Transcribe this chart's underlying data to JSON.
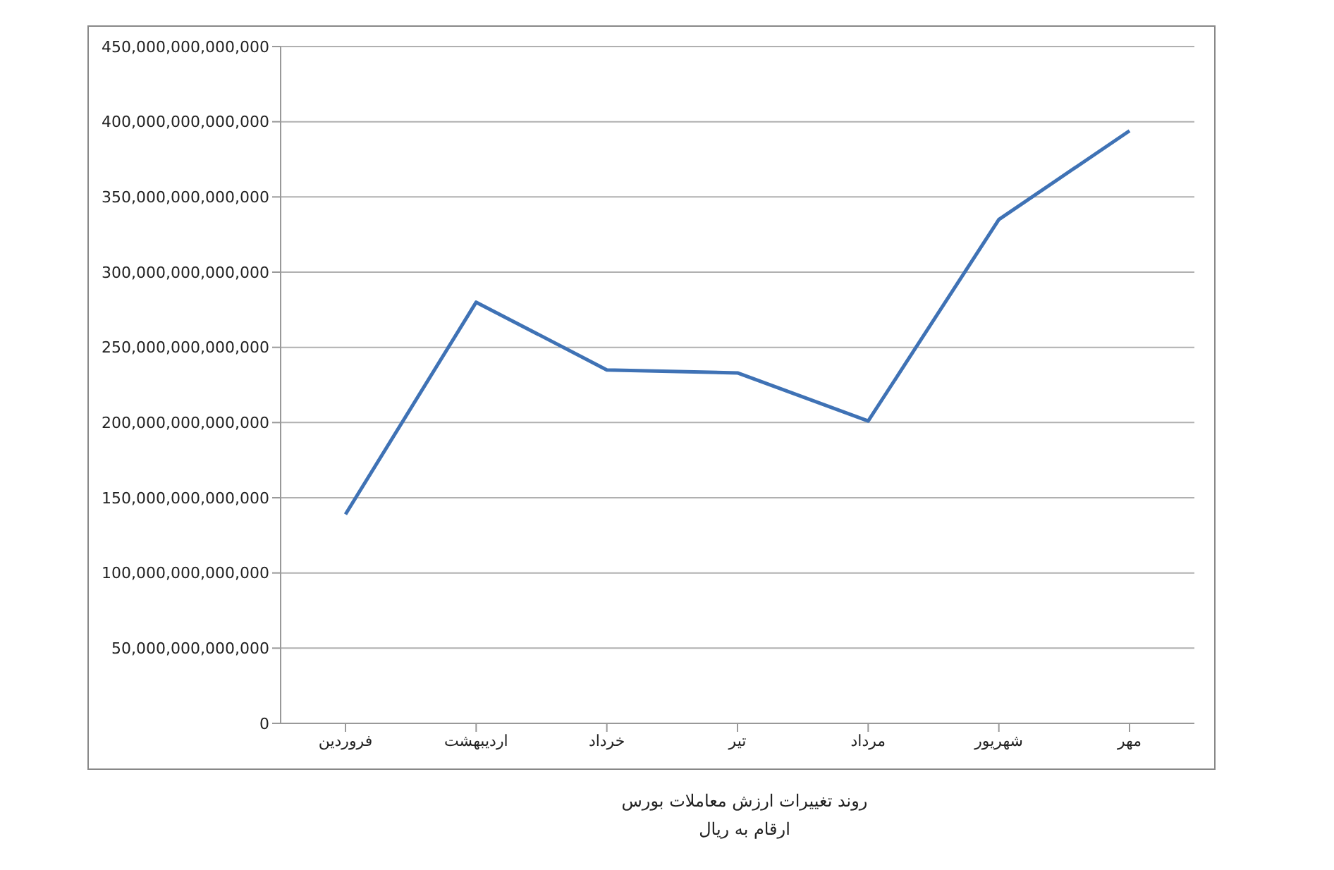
{
  "chart_data": {
    "type": "line",
    "title": "روند تغییرات ارزش معاملات بورس",
    "subtitle": "ارقام به ریال",
    "categories": [
      "فروردین",
      "اردیبهشت",
      "خرداد",
      "تیر",
      "مرداد",
      "شهریور",
      "مهر"
    ],
    "series": [
      {
        "color": "#3f72b5",
        "values": [
          139000000000000,
          280000000000000,
          235000000000000,
          233000000000000,
          201000000000000,
          335000000000000,
          394000000000000
        ]
      }
    ],
    "ylim": [
      0,
      450000000000000
    ],
    "yticks": [
      0,
      {
        "value": 50000000000000,
        "label": "50,000,000,000,000"
      },
      {
        "value": 100000000000000,
        "label": "100,000,000,000,000"
      },
      {
        "value": 150000000000000,
        "label": "150,000,000,000,000"
      },
      {
        "value": 200000000000000,
        "label": "200,000,000,000,000"
      },
      {
        "value": 250000000000000,
        "label": "250,000,000,000,000"
      },
      {
        "value": 300000000000000,
        "label": "300,000,000,000,000"
      },
      {
        "value": 350000000000000,
        "label": "350,000,000,000,000"
      },
      {
        "value": 400000000000000,
        "label": "400,000,000,000,000"
      },
      {
        "value": 450000000000000,
        "label": "450,000,000,000,000"
      }
    ],
    "grid": "y",
    "legend": false,
    "marker": "none",
    "line_style": "solid"
  }
}
